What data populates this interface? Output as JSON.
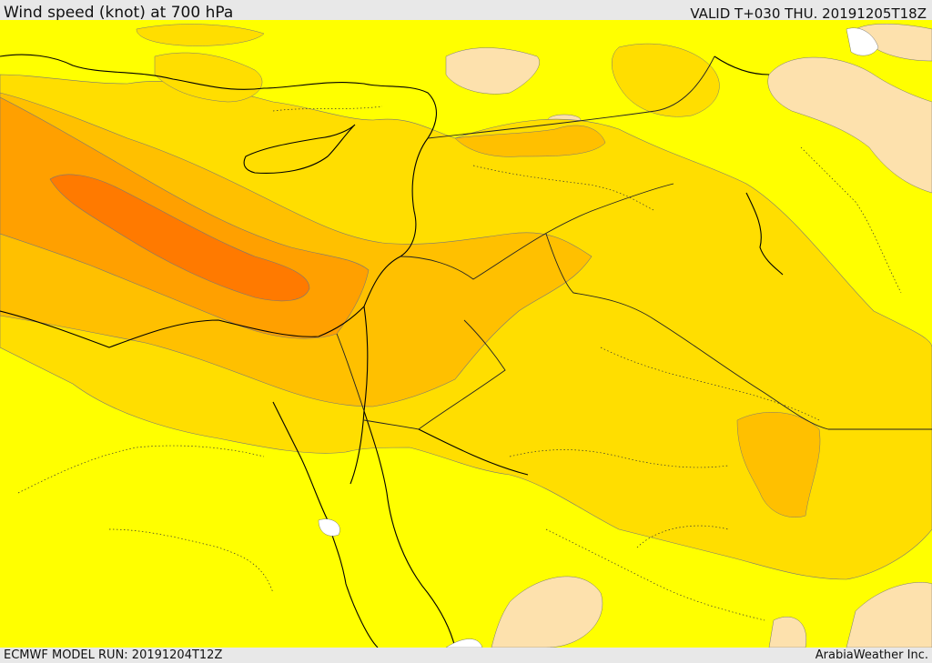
{
  "header": {
    "title": "Wind speed (knot) at 700 hPa",
    "valid": "VALID T+030 THU. 20191205T18Z"
  },
  "footer": {
    "model_run": "ECMWF MODEL RUN: 20191204T12Z",
    "credit": "ArabiaWeather Inc."
  },
  "colors": {
    "calm": "#fde1ad",
    "light": "#ffff00",
    "moderate": "#ffde00",
    "fresh": "#ffc000",
    "strong": "#ffa000",
    "gale": "#ff7a00",
    "coastline": "#000000",
    "border": "#222222"
  }
}
